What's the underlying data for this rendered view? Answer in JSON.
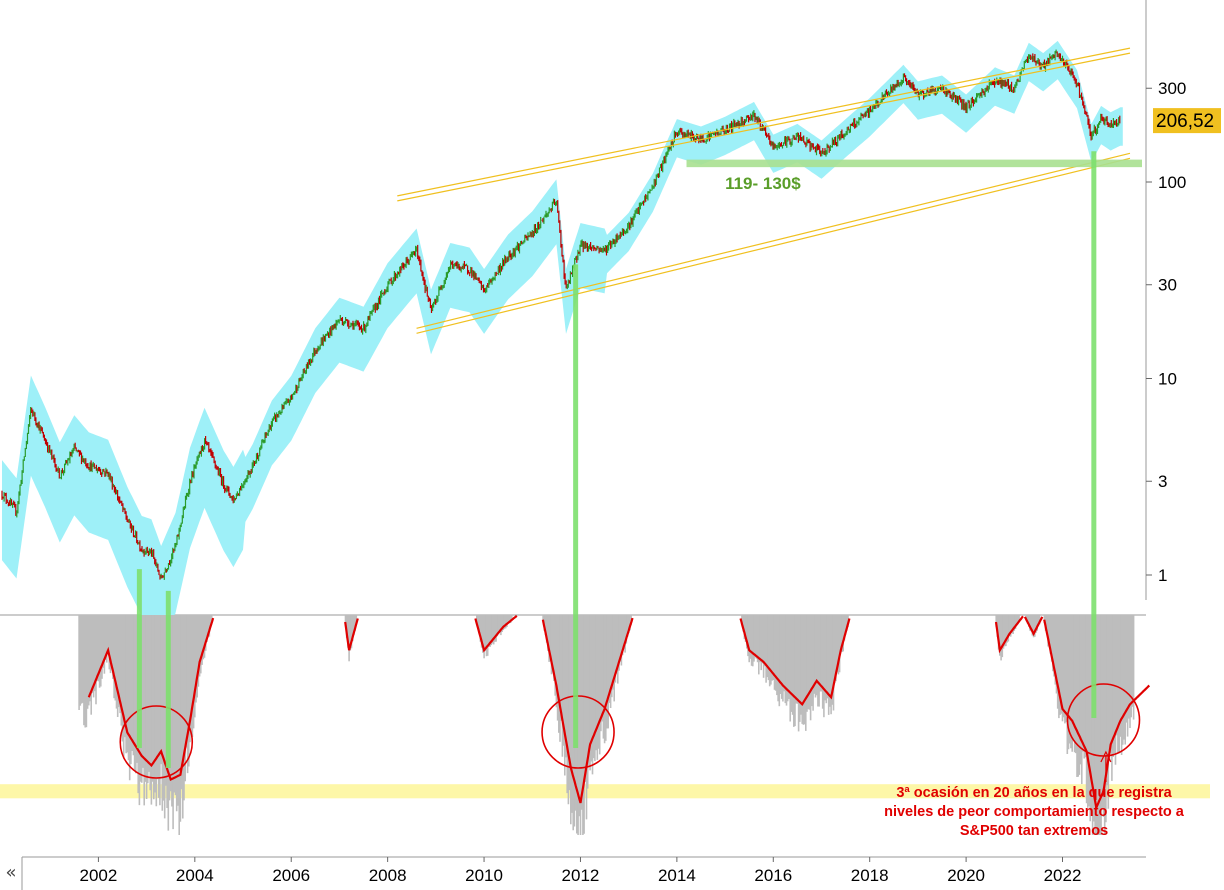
{
  "chart_data": [
    {
      "type": "candlestick",
      "scale": "log",
      "y_ticks": [
        "300",
        "100",
        "30",
        "10",
        "3",
        "1"
      ],
      "y_tick_values": [
        300,
        100,
        30,
        10,
        3,
        1
      ],
      "last_price_label": "206,52",
      "x_ticks": [
        "2002",
        "2004",
        "2006",
        "2008",
        "2010",
        "2012",
        "2014",
        "2016",
        "2018",
        "2020",
        "2022"
      ],
      "support_zone_label": "119- 130$",
      "support_zone": [
        119,
        130
      ],
      "price_path": [
        {
          "t": 2000.0,
          "v": 2.6
        },
        {
          "t": 2000.3,
          "v": 2.1
        },
        {
          "t": 2000.6,
          "v": 7.0
        },
        {
          "t": 2000.9,
          "v": 4.8
        },
        {
          "t": 2001.2,
          "v": 3.2
        },
        {
          "t": 2001.5,
          "v": 4.4
        },
        {
          "t": 2001.8,
          "v": 3.6
        },
        {
          "t": 2002.2,
          "v": 3.3
        },
        {
          "t": 2002.6,
          "v": 1.9
        },
        {
          "t": 2002.9,
          "v": 1.35
        },
        {
          "t": 2003.1,
          "v": 1.3
        },
        {
          "t": 2003.3,
          "v": 0.95
        },
        {
          "t": 2003.6,
          "v": 1.4
        },
        {
          "t": 2003.9,
          "v": 3.0
        },
        {
          "t": 2004.2,
          "v": 4.8
        },
        {
          "t": 2004.6,
          "v": 2.9
        },
        {
          "t": 2004.8,
          "v": 2.4
        },
        {
          "t": 2005.2,
          "v": 3.6
        },
        {
          "t": 2005.6,
          "v": 6.0
        },
        {
          "t": 2006.0,
          "v": 8.0
        },
        {
          "t": 2006.5,
          "v": 14.0
        },
        {
          "t": 2007.0,
          "v": 20.0
        },
        {
          "t": 2007.5,
          "v": 18.0
        },
        {
          "t": 2008.0,
          "v": 30.0
        },
        {
          "t": 2008.6,
          "v": 45.0
        },
        {
          "t": 2008.9,
          "v": 22.0
        },
        {
          "t": 2009.3,
          "v": 38.0
        },
        {
          "t": 2009.7,
          "v": 36.0
        },
        {
          "t": 2010.0,
          "v": 28.0
        },
        {
          "t": 2010.5,
          "v": 42.0
        },
        {
          "t": 2011.0,
          "v": 55.0
        },
        {
          "t": 2011.5,
          "v": 80.0
        },
        {
          "t": 2011.7,
          "v": 28.0
        },
        {
          "t": 2012.0,
          "v": 48.0
        },
        {
          "t": 2012.5,
          "v": 45.0
        },
        {
          "t": 2013.0,
          "v": 60.0
        },
        {
          "t": 2013.5,
          "v": 95.0
        },
        {
          "t": 2014.0,
          "v": 180.0
        },
        {
          "t": 2014.5,
          "v": 165.0
        },
        {
          "t": 2015.0,
          "v": 185.0
        },
        {
          "t": 2015.6,
          "v": 220.0
        },
        {
          "t": 2016.0,
          "v": 150.0
        },
        {
          "t": 2016.5,
          "v": 170.0
        },
        {
          "t": 2017.0,
          "v": 140.0
        },
        {
          "t": 2017.5,
          "v": 180.0
        },
        {
          "t": 2018.0,
          "v": 230.0
        },
        {
          "t": 2018.7,
          "v": 340.0
        },
        {
          "t": 2019.0,
          "v": 280.0
        },
        {
          "t": 2019.5,
          "v": 300.0
        },
        {
          "t": 2020.0,
          "v": 240.0
        },
        {
          "t": 2020.6,
          "v": 330.0
        },
        {
          "t": 2021.0,
          "v": 300.0
        },
        {
          "t": 2021.3,
          "v": 440.0
        },
        {
          "t": 2021.6,
          "v": 390.0
        },
        {
          "t": 2021.9,
          "v": 450.0
        },
        {
          "t": 2022.3,
          "v": 320.0
        },
        {
          "t": 2022.6,
          "v": 170.0
        },
        {
          "t": 2022.8,
          "v": 210.0
        },
        {
          "t": 2023.0,
          "v": 195.0
        },
        {
          "t": 2023.2,
          "v": 206.5
        }
      ],
      "upper_channel": [
        {
          "t": 2008.2,
          "v": 85
        },
        {
          "t": 2023.4,
          "v": 480
        }
      ],
      "lower_channel": [
        {
          "t": 2008.6,
          "v": 18
        },
        {
          "t": 2023.4,
          "v": 140
        }
      ],
      "vertical_markers": [
        2002.85,
        2003.45,
        2011.9,
        2022.65
      ]
    },
    {
      "type": "area",
      "series_color": "#e00000",
      "relative_performance": [
        {
          "t": 2001.8,
          "v": 0.65
        },
        {
          "t": 2002.2,
          "v": 0.85
        },
        {
          "t": 2002.6,
          "v": 0.5
        },
        {
          "t": 2002.9,
          "v": 0.4
        },
        {
          "t": 2003.1,
          "v": 0.36
        },
        {
          "t": 2003.3,
          "v": 0.42
        },
        {
          "t": 2003.5,
          "v": 0.3
        },
        {
          "t": 2003.7,
          "v": 0.32
        },
        {
          "t": 2003.9,
          "v": 0.55
        },
        {
          "t": 2004.1,
          "v": 0.8
        },
        {
          "t": 2004.4,
          "v": 1.0
        },
        {
          "t": 2007.1,
          "v": 1.0
        },
        {
          "t": 2007.2,
          "v": 0.85
        },
        {
          "t": 2007.4,
          "v": 1.0
        },
        {
          "t": 2009.8,
          "v": 1.0
        },
        {
          "t": 2010.0,
          "v": 0.85
        },
        {
          "t": 2010.4,
          "v": 0.95
        },
        {
          "t": 2010.7,
          "v": 1.0
        },
        {
          "t": 2011.2,
          "v": 1.0
        },
        {
          "t": 2011.5,
          "v": 0.7
        },
        {
          "t": 2011.8,
          "v": 0.35
        },
        {
          "t": 2012.0,
          "v": 0.2
        },
        {
          "t": 2012.2,
          "v": 0.45
        },
        {
          "t": 2012.5,
          "v": 0.6
        },
        {
          "t": 2012.8,
          "v": 0.8
        },
        {
          "t": 2013.1,
          "v": 1.0
        },
        {
          "t": 2015.3,
          "v": 1.0
        },
        {
          "t": 2015.5,
          "v": 0.85
        },
        {
          "t": 2015.8,
          "v": 0.8
        },
        {
          "t": 2016.2,
          "v": 0.7
        },
        {
          "t": 2016.6,
          "v": 0.62
        },
        {
          "t": 2016.9,
          "v": 0.72
        },
        {
          "t": 2017.2,
          "v": 0.65
        },
        {
          "t": 2017.4,
          "v": 0.85
        },
        {
          "t": 2017.6,
          "v": 1.0
        },
        {
          "t": 2020.6,
          "v": 1.0
        },
        {
          "t": 2020.7,
          "v": 0.85
        },
        {
          "t": 2020.9,
          "v": 0.92
        },
        {
          "t": 2021.2,
          "v": 1.0
        },
        {
          "t": 2021.4,
          "v": 0.92
        },
        {
          "t": 2021.6,
          "v": 1.0
        },
        {
          "t": 2021.8,
          "v": 0.8
        },
        {
          "t": 2022.0,
          "v": 0.6
        },
        {
          "t": 2022.2,
          "v": 0.55
        },
        {
          "t": 2022.5,
          "v": 0.42
        },
        {
          "t": 2022.7,
          "v": 0.18
        },
        {
          "t": 2022.85,
          "v": 0.25
        },
        {
          "t": 2023.0,
          "v": 0.45
        },
        {
          "t": 2023.2,
          "v": 0.55
        },
        {
          "t": 2023.4,
          "v": 0.62
        },
        {
          "t": 2023.8,
          "v": 0.7
        }
      ],
      "circled_lows": [
        2003.2,
        2011.95,
        2022.85
      ],
      "extreme_band": [
        0.22,
        0.28
      ],
      "annotation": "3ª ocasión en 20 años en la que registra\nniveles de peor comportamiento respecto a\nS&P500 tan extremos"
    }
  ],
  "ui": {
    "scroll_left_label": "«"
  },
  "colors": {
    "band": "#9ef0f8",
    "up": "#2a9a2a",
    "down": "#c00000",
    "channel": "#f0c020",
    "support": "#a8e090",
    "marker": "#7ee06e",
    "indicator": "#e00000",
    "histogram": "#bdbdbd",
    "extreme": "#fdf7a8",
    "price_box": "#f0c020",
    "annotation": "#e00000",
    "support_label": "#5a9e2a"
  }
}
